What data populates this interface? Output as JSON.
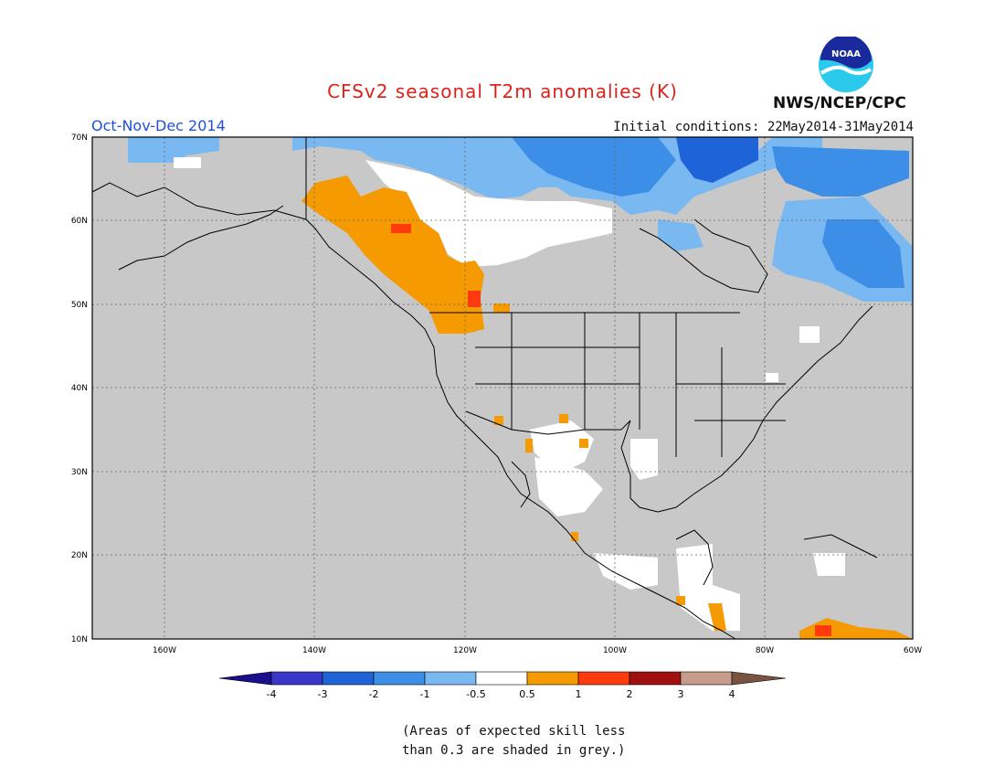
{
  "header": {
    "title": "CFSv2 seasonal T2m anomalies (K)",
    "season": "Oct-Nov-Dec 2014",
    "initial_conditions": "Initial conditions: 22May2014-31May2014",
    "agency": "NWS/NCEP/CPC",
    "logo_text": "NOAA"
  },
  "map": {
    "lat_ticks": [
      "70N",
      "60N",
      "50N",
      "40N",
      "30N",
      "20N",
      "10N"
    ],
    "lon_ticks": [
      "160W",
      "140W",
      "120W",
      "100W",
      "80W",
      "60W"
    ],
    "region": "North America",
    "background_color": "#c8c8c8"
  },
  "legend": {
    "tick_labels": [
      "-4",
      "-3",
      "-2",
      "-1",
      "-0.5",
      "0.5",
      "1",
      "2",
      "3",
      "4"
    ],
    "colors": [
      "#1c0e8c",
      "#3a37c8",
      "#1e64d8",
      "#3d8ee6",
      "#7ab8f2",
      "#ffffff",
      "#f59a00",
      "#ff3a0e",
      "#a01010",
      "#c69c8c",
      "#7a5240"
    ]
  },
  "footnote": {
    "line1": "(Areas of expected skill less",
    "line2": "than 0.3 are shaded in grey.)"
  }
}
